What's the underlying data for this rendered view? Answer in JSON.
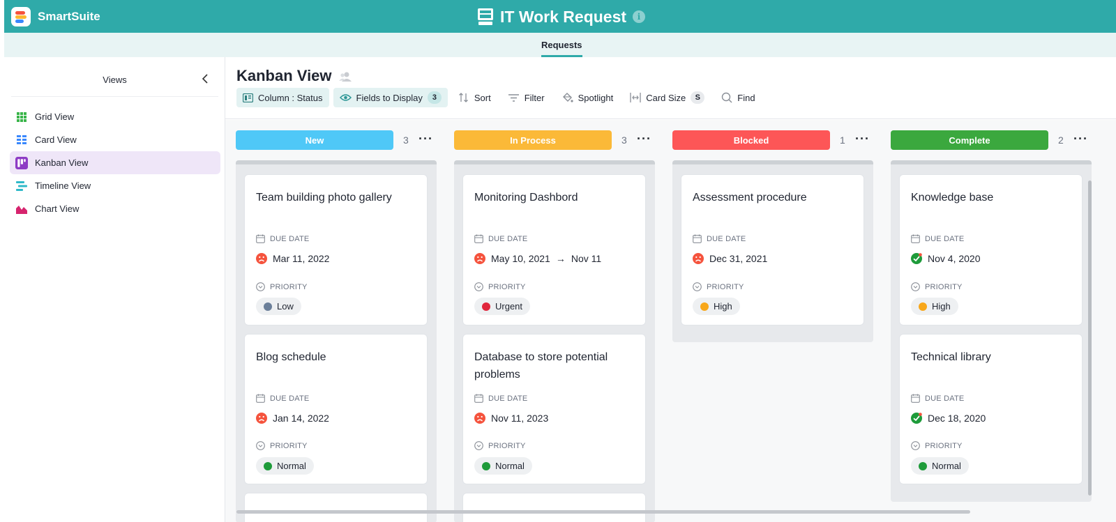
{
  "header": {
    "brand_name": "SmartSuite",
    "app_title": "IT Work Request",
    "info_icon": "info-icon",
    "app_icon": "monitor-icon",
    "background_color": "#2faaa9"
  },
  "subnav": {
    "tabs": [
      {
        "label": "Requests",
        "active": true
      }
    ]
  },
  "sidebar": {
    "title": "Views",
    "collapse_icon": "chevron-left-icon",
    "items": [
      {
        "label": "Grid View",
        "icon": "grid-view-icon",
        "active": false
      },
      {
        "label": "Card View",
        "icon": "card-view-icon",
        "active": false
      },
      {
        "label": "Kanban View",
        "icon": "kanban-view-icon",
        "active": true
      },
      {
        "label": "Timeline View",
        "icon": "timeline-view-icon",
        "active": false
      },
      {
        "label": "Chart View",
        "icon": "chart-view-icon",
        "active": false
      }
    ]
  },
  "main": {
    "view_title": "Kanban View",
    "toolbar": {
      "column": "Column : Status",
      "fields": "Fields to Display",
      "fields_count": "3",
      "sort": "Sort",
      "filter": "Filter",
      "spotlight": "Spotlight",
      "card_size": "Card Size",
      "card_size_value": "S",
      "find": "Find"
    },
    "field_labels": {
      "due_date": "DUE DATE",
      "priority": "PRIORITY"
    },
    "columns": [
      {
        "label": "New",
        "count": "3",
        "color": "#4fc8f7",
        "cards": [
          {
            "title": "Team building photo gallery",
            "date": "Mar 11, 2022",
            "status_icon": "sad-face-icon",
            "priority": "Low",
            "priority_color": "#6b7f99"
          },
          {
            "title": "Blog schedule",
            "date": "Jan 14, 2022",
            "status_icon": "sad-face-icon",
            "priority": "Normal",
            "priority_color": "#1e9b3a"
          }
        ]
      },
      {
        "label": "In Process",
        "count": "3",
        "color": "#fbb938",
        "cards": [
          {
            "title": "Monitoring Dashbord",
            "date": "May 10, 2021",
            "date_end": "Nov 11",
            "status_icon": "sad-face-icon",
            "priority": "Urgent",
            "priority_color": "#e0263c"
          },
          {
            "title": "Database to store potential problems",
            "date": "Nov 11, 2023",
            "status_icon": "sad-face-icon",
            "priority": "Normal",
            "priority_color": "#1e9b3a"
          }
        ]
      },
      {
        "label": "Blocked",
        "count": "1",
        "color": "#fd5657",
        "cards": [
          {
            "title": "Assessment procedure",
            "date": "Dec 31, 2021",
            "status_icon": "sad-face-icon",
            "priority": "High",
            "priority_color": "#f8a71a"
          }
        ]
      },
      {
        "label": "Complete",
        "count": "2",
        "color": "#3ba83e",
        "cards": [
          {
            "title": "Knowledge base",
            "date": "Nov 4, 2020",
            "status_icon": "check-circle-icon",
            "priority": "High",
            "priority_color": "#f8a71a"
          },
          {
            "title": "Technical library",
            "date": "Dec 18, 2020",
            "status_icon": "check-circle-icon",
            "priority": "Normal",
            "priority_color": "#1e9b3a"
          }
        ]
      }
    ]
  }
}
